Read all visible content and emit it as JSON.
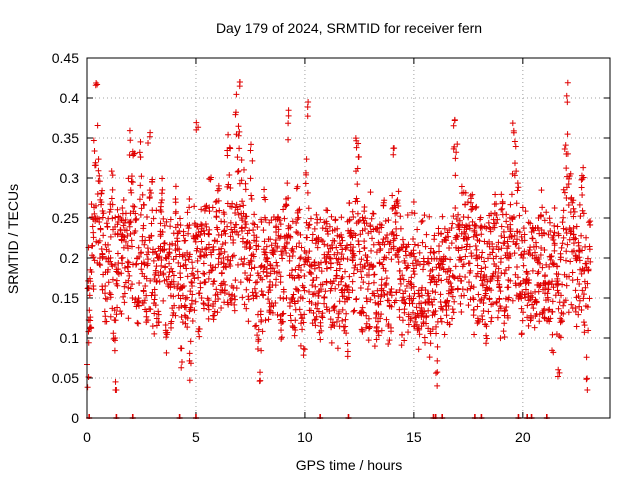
{
  "chart_data": {
    "type": "scatter",
    "title": "Day 179 of 2024, SRMTID for receiver fern",
    "xlabel": "GPS time / hours",
    "ylabel": "SRMTID / TECUs",
    "xlim": [
      0,
      24
    ],
    "ylim": [
      0,
      0.45
    ],
    "grid": true,
    "legend": "none",
    "marker": "+",
    "color": "#e00000",
    "x_ticks": [
      0,
      5,
      10,
      15,
      20
    ],
    "x_tick_labels": [
      "0",
      "5",
      "10",
      "15",
      "20"
    ],
    "y_ticks": [
      0,
      0.05,
      0.1,
      0.15,
      0.2,
      0.25,
      0.3,
      0.35,
      0.4,
      0.45
    ],
    "y_tick_labels": [
      "0",
      "0.05",
      "0.1",
      "0.15",
      "0.2",
      "0.25",
      "0.3",
      "0.35",
      "0.4",
      "0.45"
    ],
    "series": [
      {
        "name": "SRMTID",
        "x": [
          0.0,
          0.1,
          0.2,
          0.3,
          0.4,
          0.5,
          0.6,
          0.7,
          0.8,
          0.9,
          1.0,
          1.1,
          1.2,
          1.3,
          1.4,
          1.5,
          1.6,
          1.7,
          1.8,
          1.9,
          2.0,
          2.1,
          2.2,
          2.3,
          2.4,
          2.5,
          2.6,
          2.7,
          2.8,
          2.9,
          3.0,
          3.1,
          3.2,
          3.3,
          3.4,
          3.5,
          3.6,
          3.7,
          3.8,
          3.9,
          4.0,
          4.1,
          4.2,
          4.3,
          4.4,
          4.5,
          4.6,
          4.7,
          4.8,
          4.9,
          5.0,
          5.1,
          5.2,
          5.3,
          5.4,
          5.5,
          5.6,
          5.7,
          5.8,
          5.9,
          6.0,
          6.1,
          6.2,
          6.3,
          6.4,
          6.5,
          6.6,
          6.7,
          6.8,
          6.9,
          7.0,
          7.1,
          7.2,
          7.3,
          7.4,
          7.5,
          7.6,
          7.7,
          7.8,
          7.9,
          8.0,
          8.1,
          8.2,
          8.3,
          8.4,
          8.5,
          8.6,
          8.7,
          8.8,
          8.9,
          9.0,
          9.1,
          9.2,
          9.3,
          9.4,
          9.5,
          9.6,
          9.7,
          9.8,
          9.9,
          10.0,
          10.1,
          10.2,
          10.3,
          10.4,
          10.5,
          10.6,
          10.7,
          10.8,
          10.9,
          11.0,
          11.1,
          11.2,
          11.3,
          11.4,
          11.5,
          11.6,
          11.7,
          11.8,
          11.9,
          12.0,
          12.1,
          12.2,
          12.3,
          12.4,
          12.5,
          12.6,
          12.7,
          12.8,
          12.9,
          13.0,
          13.1,
          13.2,
          13.3,
          13.4,
          13.5,
          13.6,
          13.7,
          13.8,
          13.9,
          14.0,
          14.1,
          14.2,
          14.3,
          14.4,
          14.5,
          14.6,
          14.7,
          14.8,
          14.9,
          15.0,
          15.1,
          15.2,
          15.3,
          15.4,
          15.5,
          15.6,
          15.7,
          15.8,
          15.9,
          16.0,
          16.1,
          16.2,
          16.3,
          16.4,
          16.5,
          16.6,
          16.7,
          16.8,
          16.9,
          17.0,
          17.1,
          17.2,
          17.3,
          17.4,
          17.5,
          17.6,
          17.7,
          17.8,
          17.9,
          18.0,
          18.1,
          18.2,
          18.3,
          18.4,
          18.5,
          18.6,
          18.7,
          18.8,
          18.9,
          19.0,
          19.1,
          19.2,
          19.3,
          19.4,
          19.5,
          19.6,
          19.7,
          19.8,
          19.9,
          20.0,
          20.1,
          20.2,
          20.3,
          20.4,
          20.5,
          20.6,
          20.7,
          20.8,
          20.9,
          21.0,
          21.1,
          21.2,
          21.3,
          21.4,
          21.5,
          21.6,
          21.7,
          21.8,
          21.9,
          22.0,
          22.1,
          22.2,
          22.3,
          22.4,
          22.5,
          22.6,
          22.7,
          22.8,
          22.9,
          23.0,
          0.05,
          0.12,
          0.25,
          0.33,
          0.4,
          0.3,
          0.28,
          0.22,
          0.15,
          0.18,
          0.27,
          0.3,
          0.1,
          0.04,
          0.2,
          0.22,
          0.26,
          0.25,
          0.18,
          0.34,
          0.29,
          0.32,
          0.24,
          0.16,
          0.33,
          0.26,
          0.21,
          0.14,
          0.35,
          0.3,
          0.15,
          0.2,
          0.12,
          0.25,
          0.28,
          0.18,
          0.1,
          0.22,
          0.16,
          0.14,
          0.27,
          0.23,
          0.19,
          0.09,
          0.2,
          0.13,
          0.26,
          0.06,
          0.17,
          0.21,
          0.37,
          0.1,
          0.22,
          0.18,
          0.25,
          0.14,
          0.3,
          0.2,
          0.13,
          0.24,
          0.29,
          0.17,
          0.21,
          0.15,
          0.34,
          0.32,
          0.25,
          0.22,
          0.39,
          0.35,
          0.42,
          0.26,
          0.3,
          0.24,
          0.18,
          0.33,
          0.2,
          0.15,
          0.1,
          0.05,
          0.16,
          0.27,
          0.21,
          0.14,
          0.2,
          0.19,
          0.24,
          0.22,
          0.17,
          0.12,
          0.23,
          0.28,
          0.37,
          0.19,
          0.16,
          0.14,
          0.25,
          0.21,
          0.13,
          0.09,
          0.31,
          0.38,
          0.2,
          0.16,
          0.18,
          0.22,
          0.15,
          0.11,
          0.17,
          0.19,
          0.24,
          0.2,
          0.12,
          0.15,
          0.18,
          0.13,
          0.22,
          0.16,
          0.14,
          0.08,
          0.25,
          0.21,
          0.19,
          0.34,
          0.33,
          0.17,
          0.13,
          0.2,
          0.15,
          0.12,
          0.23,
          0.18,
          0.11,
          0.14,
          0.2,
          0.16,
          0.28,
          0.17,
          0.13,
          0.15,
          0.33,
          0.23,
          0.26,
          0.18,
          0.11,
          0.14,
          0.2,
          0.12,
          0.16,
          0.22,
          0.17,
          0.13,
          0.1,
          0.14,
          0.18,
          0.12,
          0.15,
          0.09,
          0.13,
          0.16,
          0.06,
          0.18,
          0.14,
          0.19,
          0.12,
          0.16,
          0.17,
          0.15,
          0.37,
          0.33,
          0.23,
          0.2,
          0.27,
          0.25,
          0.22,
          0.18,
          0.26,
          0.15,
          0.21,
          0.13,
          0.24,
          0.17,
          0.16,
          0.11,
          0.22,
          0.19,
          0.2,
          0.27,
          0.18,
          0.14,
          0.25,
          0.12,
          0.2,
          0.16,
          0.24,
          0.37,
          0.33,
          0.27,
          0.14,
          0.11,
          0.2,
          0.18,
          0.16,
          0.14,
          0.22,
          0.13,
          0.2,
          0.18,
          0.25,
          0.15,
          0.17,
          0.16,
          0.19,
          0.09,
          0.24,
          0.16
        ]
      }
    ],
    "zero_markers_x": [
      0.1,
      1.35,
      2.1,
      4.25,
      5.0,
      10.7,
      12.0,
      15.9,
      16.0,
      16.3,
      17.8,
      18.1,
      19.8,
      20.2,
      20.4,
      21.1
    ]
  }
}
